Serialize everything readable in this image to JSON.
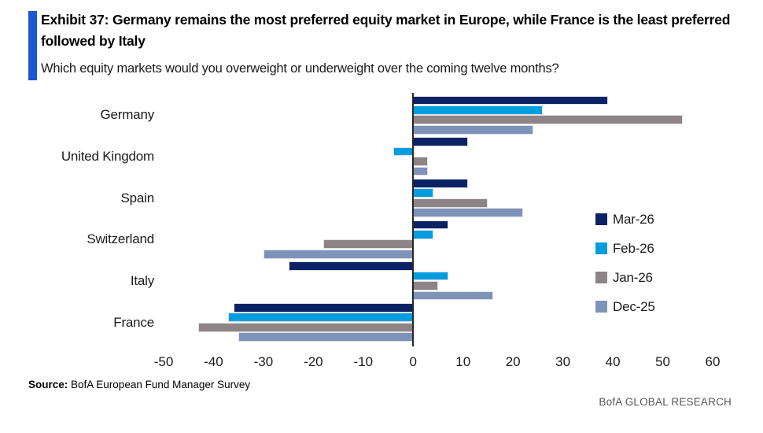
{
  "header": {
    "exhibit_title": "Exhibit 37: Germany remains the most preferred equity market in Europe, while France is the least preferred followed by Italy",
    "question": "Which equity markets would you overweight or underweight over the coming twelve months?"
  },
  "footer": {
    "source_label": "Source:",
    "source_text": " BofA European Fund Manager Survey",
    "branding": "BofA GLOBAL RESEARCH"
  },
  "colors": {
    "accent": "#1c57d2",
    "axis": "#262626",
    "bar_border": "#e2e2e2"
  },
  "chart_data": {
    "type": "bar",
    "orientation": "horizontal",
    "title": "Exhibit 37: Germany remains the most preferred equity market in Europe, while France is the least preferred followed by Italy",
    "xlabel": "",
    "ylabel": "",
    "categories": [
      "Germany",
      "United Kingdom",
      "Spain",
      "Switzerland",
      "Italy",
      "France"
    ],
    "series": [
      {
        "name": "Mar-26",
        "color": "#0b2265",
        "values": [
          39,
          11,
          11,
          7,
          -25,
          -36
        ]
      },
      {
        "name": "Feb-26",
        "color": "#009de0",
        "values": [
          26,
          -4,
          4,
          4,
          7,
          -37
        ]
      },
      {
        "name": "Jan-26",
        "color": "#8c8487",
        "values": [
          54,
          3,
          15,
          -18,
          5,
          -43
        ]
      },
      {
        "name": "Dec-25",
        "color": "#7e93ba",
        "values": [
          24,
          3,
          22,
          -30,
          16,
          -35
        ]
      }
    ],
    "xlim": [
      -50,
      60
    ],
    "xticks": [
      -50,
      -40,
      -30,
      -20,
      -10,
      0,
      10,
      20,
      30,
      40,
      50,
      60
    ],
    "grid": false,
    "legend_position": "right-middle"
  }
}
